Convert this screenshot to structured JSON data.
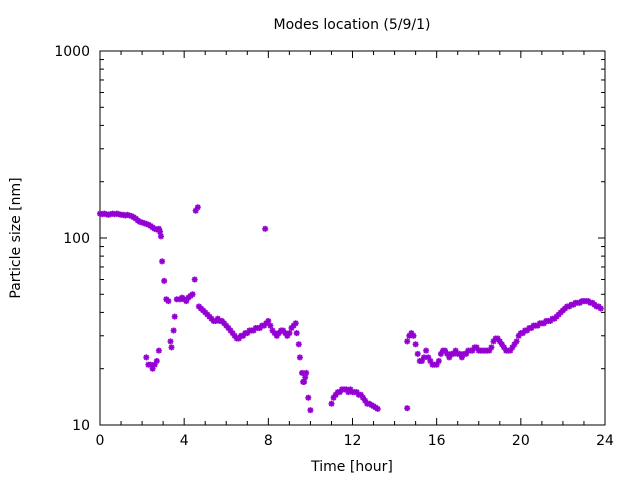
{
  "chart_data": {
    "type": "scatter",
    "title": "Modes location (5/9/1)",
    "xlabel": "Time [hour]",
    "ylabel": "Particle size [nm]",
    "xlim": [
      0,
      24
    ],
    "ylim": [
      10,
      1000
    ],
    "yscale": "log",
    "xticks": [
      0,
      4,
      8,
      12,
      16,
      20,
      24
    ],
    "xtick_labels": [
      "0",
      "4",
      "8",
      "12",
      "16",
      "20",
      "24"
    ],
    "yticks": [
      10,
      100,
      1000
    ],
    "ytick_labels": [
      "10",
      "100",
      "1000"
    ],
    "grid": false,
    "legend": "none",
    "marker_color": "#9400d3",
    "marker": "star",
    "series": [
      {
        "points": [
          [
            0.0,
            135
          ],
          [
            0.1,
            134
          ],
          [
            0.2,
            135
          ],
          [
            0.3,
            134
          ],
          [
            0.4,
            133
          ],
          [
            0.5,
            134
          ],
          [
            0.6,
            135
          ],
          [
            0.7,
            134
          ],
          [
            0.8,
            135
          ],
          [
            0.9,
            134
          ],
          [
            1.0,
            133
          ],
          [
            1.1,
            133
          ],
          [
            1.2,
            132
          ],
          [
            1.3,
            133
          ],
          [
            1.4,
            132
          ],
          [
            1.5,
            131
          ],
          [
            1.6,
            129
          ],
          [
            1.7,
            127
          ],
          [
            1.8,
            124
          ],
          [
            1.9,
            122
          ],
          [
            2.0,
            121
          ],
          [
            2.1,
            120
          ],
          [
            2.2,
            119
          ],
          [
            2.3,
            118
          ],
          [
            2.4,
            116
          ],
          [
            2.5,
            114
          ],
          [
            2.6,
            112
          ],
          [
            2.7,
            111
          ],
          [
            2.8,
            112
          ],
          [
            2.85,
            108
          ],
          [
            2.9,
            102
          ],
          [
            2.95,
            75
          ],
          [
            3.05,
            59
          ],
          [
            3.15,
            47
          ],
          [
            3.25,
            46
          ],
          [
            3.35,
            28
          ],
          [
            3.4,
            26
          ],
          [
            3.5,
            32
          ],
          [
            3.55,
            38
          ],
          [
            3.65,
            47
          ],
          [
            3.8,
            47
          ],
          [
            3.9,
            48
          ],
          [
            4.0,
            47
          ],
          [
            4.1,
            46
          ],
          [
            4.2,
            48
          ],
          [
            4.3,
            49
          ],
          [
            4.4,
            50
          ],
          [
            4.5,
            60
          ],
          [
            4.55,
            140
          ],
          [
            4.65,
            146
          ],
          [
            4.7,
            43
          ],
          [
            4.8,
            42
          ],
          [
            4.9,
            41
          ],
          [
            5.0,
            40
          ],
          [
            5.1,
            39
          ],
          [
            5.2,
            38
          ],
          [
            5.3,
            37
          ],
          [
            5.4,
            36
          ],
          [
            5.5,
            36
          ],
          [
            5.6,
            37
          ],
          [
            5.7,
            36
          ],
          [
            5.8,
            36
          ],
          [
            5.9,
            35
          ],
          [
            6.0,
            34
          ],
          [
            6.1,
            33
          ],
          [
            6.2,
            32
          ],
          [
            6.3,
            31
          ],
          [
            6.4,
            30
          ],
          [
            6.5,
            29
          ],
          [
            6.6,
            29
          ],
          [
            6.7,
            30
          ],
          [
            6.8,
            30
          ],
          [
            6.9,
            31
          ],
          [
            7.0,
            31
          ],
          [
            7.1,
            32
          ],
          [
            7.2,
            32
          ],
          [
            7.3,
            32
          ],
          [
            7.4,
            33
          ],
          [
            7.5,
            33
          ],
          [
            7.6,
            33
          ],
          [
            7.7,
            34
          ],
          [
            7.8,
            34
          ],
          [
            7.85,
            112
          ],
          [
            7.9,
            35
          ],
          [
            8.0,
            36
          ],
          [
            8.1,
            34
          ],
          [
            8.2,
            32
          ],
          [
            8.3,
            31
          ],
          [
            8.4,
            30
          ],
          [
            8.5,
            31
          ],
          [
            8.6,
            32
          ],
          [
            8.7,
            32
          ],
          [
            8.8,
            31
          ],
          [
            8.9,
            30
          ],
          [
            9.0,
            31
          ],
          [
            9.1,
            33
          ],
          [
            9.2,
            34
          ],
          [
            9.3,
            35
          ],
          [
            9.35,
            31
          ],
          [
            9.45,
            27
          ],
          [
            9.5,
            23
          ],
          [
            9.6,
            19
          ],
          [
            9.65,
            17
          ],
          [
            9.7,
            17
          ],
          [
            9.75,
            18
          ],
          [
            9.8,
            19
          ],
          [
            9.9,
            14
          ],
          [
            10.0,
            12
          ],
          [
            2.2,
            23
          ],
          [
            2.3,
            21
          ],
          [
            2.4,
            21
          ],
          [
            2.5,
            20
          ],
          [
            2.6,
            21
          ],
          [
            2.7,
            22
          ],
          [
            2.8,
            25
          ],
          [
            11.0,
            13
          ],
          [
            11.1,
            14
          ],
          [
            11.2,
            14.5
          ],
          [
            11.3,
            15
          ],
          [
            11.4,
            15
          ],
          [
            11.5,
            15.5
          ],
          [
            11.6,
            15.5
          ],
          [
            11.7,
            15.5
          ],
          [
            11.8,
            15
          ],
          [
            11.9,
            15.5
          ],
          [
            12.0,
            15
          ],
          [
            12.1,
            15
          ],
          [
            12.2,
            15
          ],
          [
            12.3,
            14.5
          ],
          [
            12.4,
            14.5
          ],
          [
            12.5,
            14
          ],
          [
            12.6,
            13.5
          ],
          [
            12.7,
            13
          ],
          [
            12.8,
            13
          ],
          [
            12.9,
            12.8
          ],
          [
            13.0,
            12.6
          ],
          [
            13.1,
            12.4
          ],
          [
            13.2,
            12.2
          ],
          [
            14.6,
            12.3
          ],
          [
            14.6,
            28
          ],
          [
            14.7,
            30
          ],
          [
            14.8,
            31
          ],
          [
            14.9,
            30
          ],
          [
            15.0,
            27
          ],
          [
            15.1,
            24
          ],
          [
            15.2,
            22
          ],
          [
            15.3,
            22
          ],
          [
            15.4,
            23
          ],
          [
            15.5,
            25
          ],
          [
            15.6,
            23
          ],
          [
            15.7,
            22
          ],
          [
            15.8,
            21
          ],
          [
            15.9,
            21
          ],
          [
            16.0,
            21
          ],
          [
            16.1,
            22
          ],
          [
            16.2,
            24
          ],
          [
            16.3,
            25
          ],
          [
            16.4,
            25
          ],
          [
            16.5,
            24
          ],
          [
            16.6,
            23
          ],
          [
            16.7,
            24
          ],
          [
            16.8,
            24
          ],
          [
            16.9,
            25
          ],
          [
            17.0,
            24
          ],
          [
            17.1,
            24
          ],
          [
            17.2,
            23
          ],
          [
            17.3,
            24
          ],
          [
            17.4,
            24
          ],
          [
            17.5,
            25
          ],
          [
            17.6,
            25
          ],
          [
            17.7,
            25
          ],
          [
            17.8,
            26
          ],
          [
            17.9,
            26
          ],
          [
            18.0,
            25
          ],
          [
            18.1,
            25
          ],
          [
            18.2,
            25
          ],
          [
            18.3,
            25
          ],
          [
            18.4,
            25
          ],
          [
            18.5,
            25
          ],
          [
            18.6,
            26
          ],
          [
            18.7,
            28
          ],
          [
            18.8,
            29
          ],
          [
            18.9,
            29
          ],
          [
            19.0,
            28
          ],
          [
            19.1,
            27
          ],
          [
            19.2,
            26
          ],
          [
            19.3,
            25
          ],
          [
            19.4,
            25
          ],
          [
            19.5,
            25
          ],
          [
            19.6,
            26
          ],
          [
            19.7,
            27
          ],
          [
            19.8,
            28
          ],
          [
            19.9,
            30
          ],
          [
            20.0,
            31
          ],
          [
            20.1,
            31
          ],
          [
            20.2,
            32
          ],
          [
            20.3,
            32
          ],
          [
            20.4,
            33
          ],
          [
            20.5,
            33
          ],
          [
            20.6,
            34
          ],
          [
            20.7,
            34
          ],
          [
            20.8,
            34
          ],
          [
            20.9,
            35
          ],
          [
            21.0,
            35
          ],
          [
            21.1,
            35
          ],
          [
            21.2,
            36
          ],
          [
            21.3,
            36
          ],
          [
            21.4,
            36
          ],
          [
            21.5,
            37
          ],
          [
            21.6,
            37
          ],
          [
            21.7,
            38
          ],
          [
            21.8,
            39
          ],
          [
            21.9,
            40
          ],
          [
            22.0,
            41
          ],
          [
            22.1,
            42
          ],
          [
            22.2,
            43
          ],
          [
            22.3,
            43
          ],
          [
            22.4,
            44
          ],
          [
            22.5,
            44
          ],
          [
            22.6,
            45
          ],
          [
            22.7,
            45
          ],
          [
            22.8,
            45
          ],
          [
            22.9,
            46
          ],
          [
            23.0,
            46
          ],
          [
            23.1,
            46
          ],
          [
            23.2,
            46
          ],
          [
            23.3,
            45
          ],
          [
            23.4,
            45
          ],
          [
            23.5,
            44
          ],
          [
            23.6,
            43
          ],
          [
            23.7,
            43
          ],
          [
            23.8,
            42
          ]
        ]
      }
    ]
  }
}
